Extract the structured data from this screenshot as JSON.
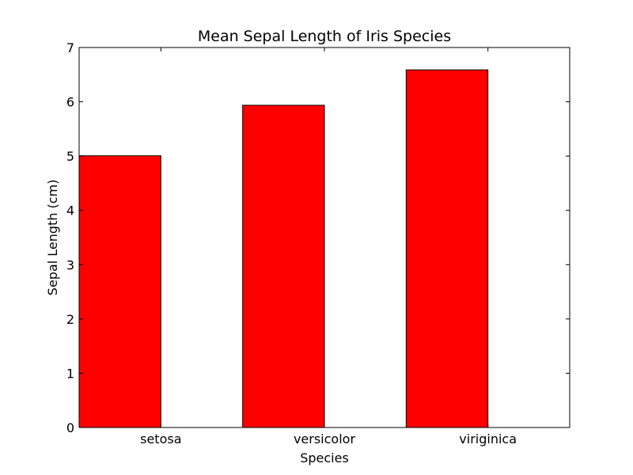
{
  "chart_data": {
    "type": "bar",
    "title": "Mean Sepal Length of Iris Species",
    "xlabel": "Species",
    "ylabel": "Sepal Length (cm)",
    "categories": [
      "setosa",
      "versicolor",
      "viriginica"
    ],
    "values": [
      5.006,
      5.936,
      6.588
    ],
    "ylim": [
      0,
      7
    ],
    "yticks": [
      0,
      1,
      2,
      3,
      4,
      5,
      6,
      7
    ],
    "xlim": [
      -0.5,
      2.5
    ],
    "bar_color": "#ff0000",
    "edge_color": "#000000",
    "grid": false,
    "legend": "none"
  }
}
